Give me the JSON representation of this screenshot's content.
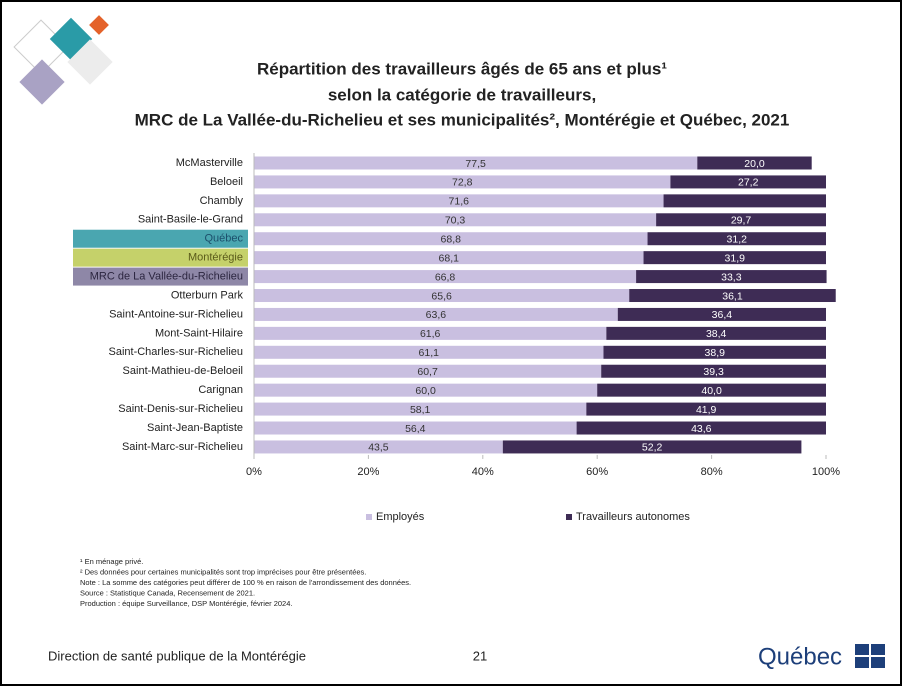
{
  "chart_data": {
    "type": "stacked-barh",
    "title": [
      "Répartition des travailleurs âgés de 65 ans et plus¹",
      "selon la catégorie de travailleurs,",
      "MRC de La Vallée-du-Richelieu et ses municipalités², Montérégie et Québec, 2021"
    ],
    "categories": [
      "McMasterville",
      "Beloeil",
      "Chambly",
      "Saint-Basile-le-Grand",
      "Québec",
      "Montérégie",
      "MRC de La Vallée-du-Richelieu",
      "Otterburn Park",
      "Saint-Antoine-sur-Richelieu",
      "Mont-Saint-Hilaire",
      "Saint-Charles-sur-Richelieu",
      "Saint-Mathieu-de-Beloeil",
      "Carignan",
      "Saint-Denis-sur-Richelieu",
      "Saint-Jean-Baptiste",
      "Saint-Marc-sur-Richelieu"
    ],
    "category_highlights": [
      null,
      null,
      null,
      null,
      "#4aa6b0",
      "#c5d16a",
      "#8e87a7",
      null,
      null,
      null,
      null,
      null,
      null,
      null,
      null,
      null
    ],
    "category_text_colors": [
      null,
      null,
      null,
      null,
      "#1c4f6b",
      "#5a5a1a",
      "#2c2640",
      null,
      null,
      null,
      null,
      null,
      null,
      null,
      null,
      null
    ],
    "series": [
      {
        "name": "Employés",
        "color": "#c9bfe0",
        "label_color": "#333333",
        "values": [
          77.5,
          72.8,
          71.6,
          70.3,
          68.8,
          68.1,
          66.8,
          65.6,
          63.6,
          61.6,
          61.1,
          60.7,
          60.0,
          58.1,
          56.4,
          43.5
        ],
        "value_labels": [
          "77,5",
          "72,8",
          "71,6",
          "70,3",
          "68,8",
          "68,1",
          "66,8",
          "65,6",
          "63,6",
          "61,6",
          "61,1",
          "60,7",
          "60,0",
          "58,1",
          "56,4",
          "43,5"
        ]
      },
      {
        "name": "Travailleurs autonomes",
        "color": "#3e2c55",
        "label_color": "#ffffff",
        "values": [
          20.0,
          27.2,
          28.4,
          29.7,
          31.2,
          31.9,
          33.3,
          36.1,
          36.4,
          38.4,
          38.9,
          39.3,
          40.0,
          41.9,
          43.6,
          52.2
        ],
        "value_labels": [
          "20,0",
          "27,2",
          null,
          "29,7",
          "31,2",
          "31,9",
          "33,3",
          "36,1",
          "36,4",
          "38,4",
          "38,9",
          "39,3",
          "40,0",
          "41,9",
          "43,6",
          "52,2"
        ]
      }
    ],
    "xlim": [
      0,
      100
    ],
    "xticks": [
      {
        "value": 0,
        "label": "0%"
      },
      {
        "value": 20,
        "label": "20%"
      },
      {
        "value": 40,
        "label": "40%"
      },
      {
        "value": 60,
        "label": "60%"
      },
      {
        "value": 80,
        "label": "80%"
      },
      {
        "value": 100,
        "label": "100%"
      }
    ],
    "legend": "bottom",
    "notes": [
      "¹ En ménage privé.",
      "² Des données pour certaines municipalités sont trop imprécises pour être présentées.",
      "Note : La somme des catégories peut différer de 100 % en raison de l'arrondissement des données.",
      "Source : Statistique Canada, Recensement de 2021.",
      "Production : équipe Surveillance, DSP Montérégie, février 2024."
    ]
  },
  "footer": {
    "text": "Direction de santé publique de la Montérégie",
    "page": "21",
    "logo": "Québec"
  }
}
